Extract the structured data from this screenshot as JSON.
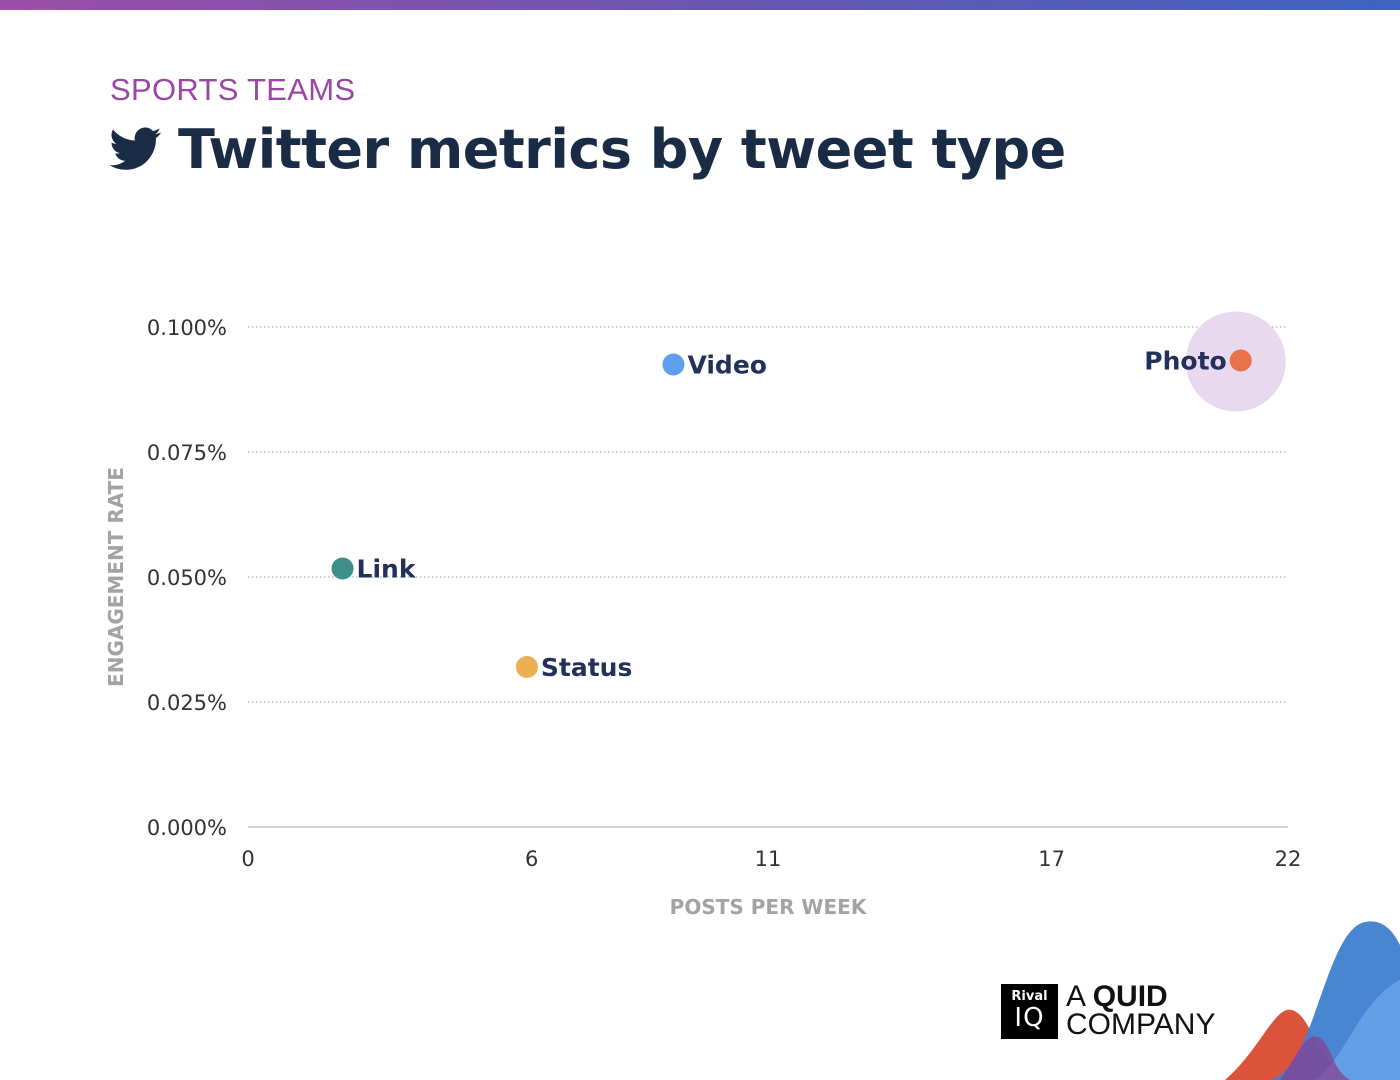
{
  "header": {
    "kicker": "SPORTS TEAMS",
    "title": "Twitter metrics by tweet type",
    "title_icon": "twitter-bird-icon"
  },
  "colors": {
    "top_bar_start": "#9b4fa8",
    "top_bar_end": "#3f63c0",
    "kicker": "#9b46a6",
    "title": "#1a2b45",
    "label": "#22315a",
    "highlight": "#e9d9ef"
  },
  "chart_data": {
    "type": "scatter",
    "xlabel": "POSTS PER WEEK",
    "ylabel": "ENGAGEMENT RATE",
    "xlim": [
      0,
      22
    ],
    "ylim": [
      0,
      0.1
    ],
    "x_ticks": [
      0,
      6,
      11,
      17,
      22
    ],
    "y_ticks": [
      "0.000%",
      "0.025%",
      "0.050%",
      "0.075%",
      "0.100%"
    ],
    "y_tick_values": [
      0,
      0.025,
      0.05,
      0.075,
      0.1
    ],
    "grid": true,
    "points": [
      {
        "label": "Video",
        "x": 9.0,
        "y": 0.0925,
        "color": "#5e9ff0",
        "label_side": "right"
      },
      {
        "label": "Photo",
        "x": 21.0,
        "y": 0.0933,
        "color": "#e8724a",
        "label_side": "left",
        "highlight": true
      },
      {
        "label": "Link",
        "x": 2.0,
        "y": 0.0517,
        "color": "#3e8f8b",
        "label_side": "right"
      },
      {
        "label": "Status",
        "x": 5.9,
        "y": 0.032,
        "color": "#ecb052",
        "label_side": "right"
      }
    ]
  },
  "logo": {
    "box_line1": "Rival",
    "box_line2": "IQ",
    "text_prefix": "A ",
    "text_bold": "QUID",
    "text_line2": "COMPANY"
  }
}
